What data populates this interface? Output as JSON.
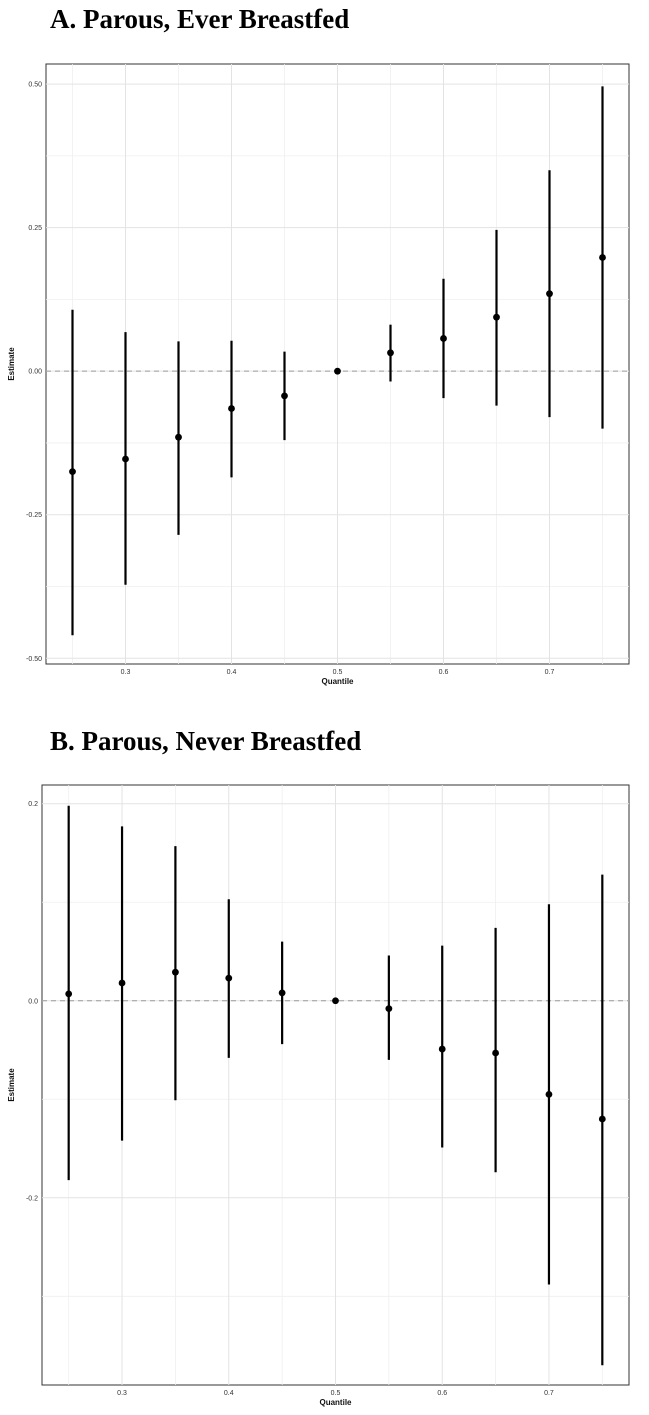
{
  "chart_data": [
    {
      "type": "scatter",
      "title": "A.  Parous, Ever Breastfed",
      "xlabel": "Quantile",
      "ylabel": "Estimate",
      "xlim": [
        0.225,
        0.775
      ],
      "ylim": [
        -0.51,
        0.535
      ],
      "xticks": [
        "0.3",
        "0.4",
        "0.5",
        "0.6",
        "0.7"
      ],
      "xtick_values": [
        0.3,
        0.4,
        0.5,
        0.6,
        0.7
      ],
      "yticks": [
        "-0.50",
        "-0.25",
        "0.00",
        "0.25",
        "0.50"
      ],
      "ytick_values": [
        -0.5,
        -0.25,
        0,
        0.25,
        0.5
      ],
      "reference_line": 0,
      "grid": true,
      "points": [
        {
          "x": 0.25,
          "y": -0.175,
          "lo": -0.46,
          "hi": 0.107
        },
        {
          "x": 0.3,
          "y": -0.153,
          "lo": -0.372,
          "hi": 0.068
        },
        {
          "x": 0.35,
          "y": -0.115,
          "lo": -0.285,
          "hi": 0.052
        },
        {
          "x": 0.4,
          "y": -0.065,
          "lo": -0.185,
          "hi": 0.053
        },
        {
          "x": 0.45,
          "y": -0.043,
          "lo": -0.12,
          "hi": 0.034
        },
        {
          "x": 0.5,
          "y": 0.0,
          "lo": 0.0,
          "hi": 0.0
        },
        {
          "x": 0.55,
          "y": 0.032,
          "lo": -0.018,
          "hi": 0.081
        },
        {
          "x": 0.6,
          "y": 0.057,
          "lo": -0.047,
          "hi": 0.161
        },
        {
          "x": 0.65,
          "y": 0.094,
          "lo": -0.06,
          "hi": 0.246
        },
        {
          "x": 0.7,
          "y": 0.135,
          "lo": -0.08,
          "hi": 0.35
        },
        {
          "x": 0.75,
          "y": 0.198,
          "lo": -0.1,
          "hi": 0.496
        }
      ]
    },
    {
      "type": "scatter",
      "title": "B.  Parous, Never Breastfed",
      "xlabel": "Quantile",
      "ylabel": "Estimate",
      "xlim": [
        0.225,
        0.775
      ],
      "ylim": [
        -0.39,
        0.219
      ],
      "xticks": [
        "0.3",
        "0.4",
        "0.5",
        "0.6",
        "0.7"
      ],
      "xtick_values": [
        0.3,
        0.4,
        0.5,
        0.6,
        0.7
      ],
      "yticks": [
        "-0.2",
        "0.0",
        "0.2"
      ],
      "ytick_values": [
        -0.2,
        0,
        0.2
      ],
      "reference_line": 0,
      "grid": true,
      "points": [
        {
          "x": 0.25,
          "y": 0.007,
          "lo": -0.182,
          "hi": 0.198
        },
        {
          "x": 0.3,
          "y": 0.018,
          "lo": -0.142,
          "hi": 0.177
        },
        {
          "x": 0.35,
          "y": 0.029,
          "lo": -0.101,
          "hi": 0.157
        },
        {
          "x": 0.4,
          "y": 0.023,
          "lo": -0.058,
          "hi": 0.103
        },
        {
          "x": 0.45,
          "y": 0.008,
          "lo": -0.044,
          "hi": 0.06
        },
        {
          "x": 0.5,
          "y": 0.0,
          "lo": 0.0,
          "hi": 0.0
        },
        {
          "x": 0.55,
          "y": -0.008,
          "lo": -0.06,
          "hi": 0.046
        },
        {
          "x": 0.6,
          "y": -0.049,
          "lo": -0.149,
          "hi": 0.056
        },
        {
          "x": 0.65,
          "y": -0.053,
          "lo": -0.174,
          "hi": 0.074
        },
        {
          "x": 0.7,
          "y": -0.095,
          "lo": -0.288,
          "hi": 0.098
        },
        {
          "x": 0.75,
          "y": -0.12,
          "lo": -0.37,
          "hi": 0.128
        }
      ]
    }
  ]
}
